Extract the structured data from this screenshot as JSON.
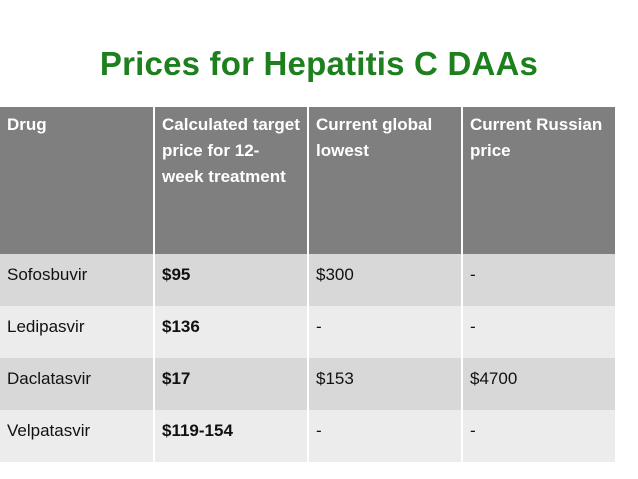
{
  "slide": {
    "title": "Prices for Hepatitis C DAAs"
  },
  "table": {
    "headers": [
      "Drug",
      "Calculated target price for 12-week treatment",
      "Current global lowest",
      "Current Russian price"
    ],
    "rows": [
      {
        "drug": "Sofosbuvir",
        "target": "$95",
        "global_lowest": "$300",
        "russian_price": "-"
      },
      {
        "drug": "Ledipasvir",
        "target": "$136",
        "global_lowest": "-",
        "russian_price": "-"
      },
      {
        "drug": "Daclatasvir",
        "target": "$17",
        "global_lowest": "$153",
        "russian_price": "$4700"
      },
      {
        "drug": "Velpatasvir",
        "target": "$119-154",
        "global_lowest": "-",
        "russian_price": "-"
      }
    ]
  },
  "colors": {
    "title": "#1e7f1e",
    "header_bg": "#7f7f7f",
    "row_dark": "#d8d8d8",
    "row_light": "#ececec"
  }
}
